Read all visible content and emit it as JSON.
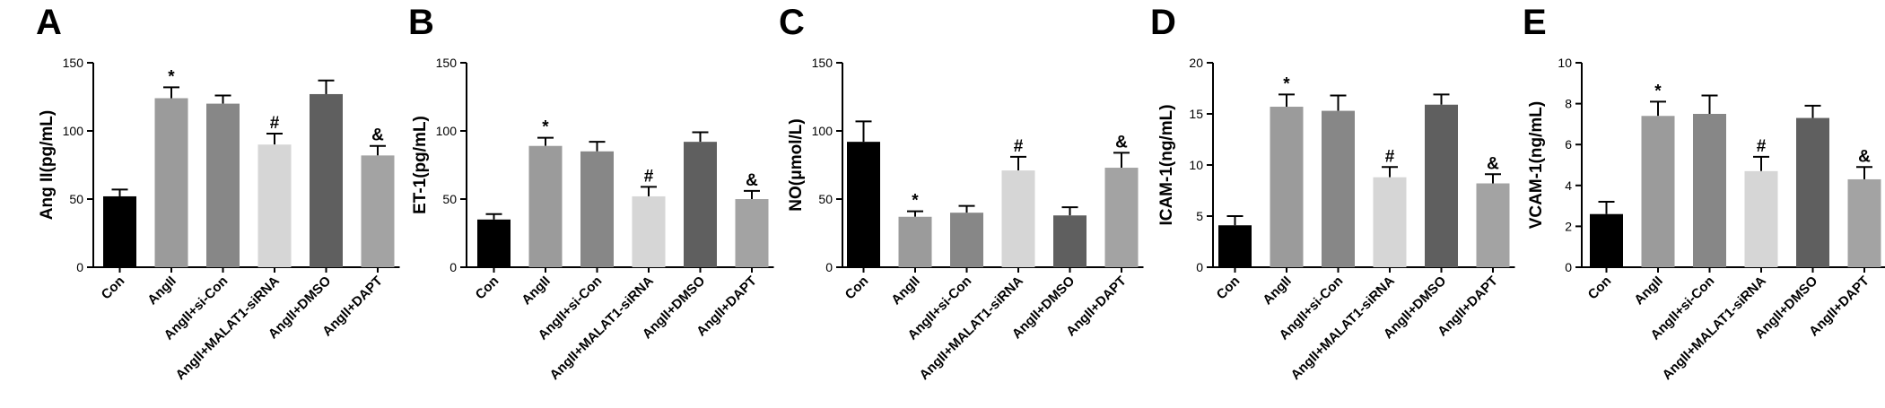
{
  "colors": {
    "Con": "#000000",
    "AngII": "#9b9b9b",
    "AngII+si-Con": "#878787",
    "AngII+MALAT1-siRNA": "#d6d6d6",
    "AngII+DMSO": "#5f5f5f",
    "AngII+DAPT": "#a3a3a3"
  },
  "chart_data": [
    {
      "type": "bar",
      "panel": "A",
      "ylabel": "Ang II(pg/mL)",
      "categories": [
        "Con",
        "AngII",
        "AngII+si-Con",
        "AngII+MALAT1-siRNA",
        "AngII+DMSO",
        "AngII+DAPT"
      ],
      "values": [
        52,
        124,
        120,
        90,
        127,
        82
      ],
      "errors": [
        5,
        8,
        6,
        8,
        10,
        7
      ],
      "annotations": [
        "",
        "*",
        "",
        "#",
        "",
        "&"
      ],
      "ylim": [
        0,
        150
      ],
      "yticks": [
        0,
        50,
        100,
        150
      ]
    },
    {
      "type": "bar",
      "panel": "B",
      "ylabel": "ET-1(pg/mL)",
      "categories": [
        "Con",
        "AngII",
        "AngII+si-Con",
        "AngII+MALAT1-siRNA",
        "AngII+DMSO",
        "AngII+DAPT"
      ],
      "values": [
        35,
        89,
        85,
        52,
        92,
        50
      ],
      "errors": [
        4,
        6,
        7,
        7,
        7,
        6
      ],
      "annotations": [
        "",
        "*",
        "",
        "#",
        "",
        "&"
      ],
      "ylim": [
        0,
        150
      ],
      "yticks": [
        0,
        50,
        100,
        150
      ]
    },
    {
      "type": "bar",
      "panel": "C",
      "ylabel": "NO(μmol/L)",
      "categories": [
        "Con",
        "AngII",
        "AngII+si-Con",
        "AngII+MALAT1-siRNA",
        "AngII+DMSO",
        "AngII+DAPT"
      ],
      "values": [
        92,
        37,
        40,
        71,
        38,
        73
      ],
      "errors": [
        15,
        4,
        5,
        10,
        6,
        11
      ],
      "annotations": [
        "",
        "*",
        "",
        "#",
        "",
        "&"
      ],
      "ylim": [
        0,
        150
      ],
      "yticks": [
        0,
        50,
        100,
        150
      ]
    },
    {
      "type": "bar",
      "panel": "D",
      "ylabel": "ICAM-1(ng/mL)",
      "categories": [
        "Con",
        "AngII",
        "AngII+si-Con",
        "AngII+MALAT1-siRNA",
        "AngII+DMSO",
        "AngII+DAPT"
      ],
      "values": [
        4.1,
        15.7,
        15.3,
        8.8,
        15.9,
        8.2
      ],
      "errors": [
        0.9,
        1.2,
        1.5,
        1.0,
        1.0,
        0.9
      ],
      "annotations": [
        "",
        "*",
        "",
        "#",
        "",
        "&"
      ],
      "ylim": [
        0,
        20
      ],
      "yticks": [
        0,
        5,
        10,
        15,
        20
      ]
    },
    {
      "type": "bar",
      "panel": "E",
      "ylabel": "VCAM-1(ng/mL)",
      "categories": [
        "Con",
        "AngII",
        "AngII+si-Con",
        "AngII+MALAT1-siRNA",
        "AngII+DMSO",
        "AngII+DAPT"
      ],
      "values": [
        2.6,
        7.4,
        7.5,
        4.7,
        7.3,
        4.3
      ],
      "errors": [
        0.6,
        0.7,
        0.9,
        0.7,
        0.6,
        0.6
      ],
      "annotations": [
        "",
        "*",
        "",
        "#",
        "",
        "&"
      ],
      "ylim": [
        0,
        10
      ],
      "yticks": [
        0,
        2,
        4,
        6,
        8,
        10
      ]
    }
  ]
}
